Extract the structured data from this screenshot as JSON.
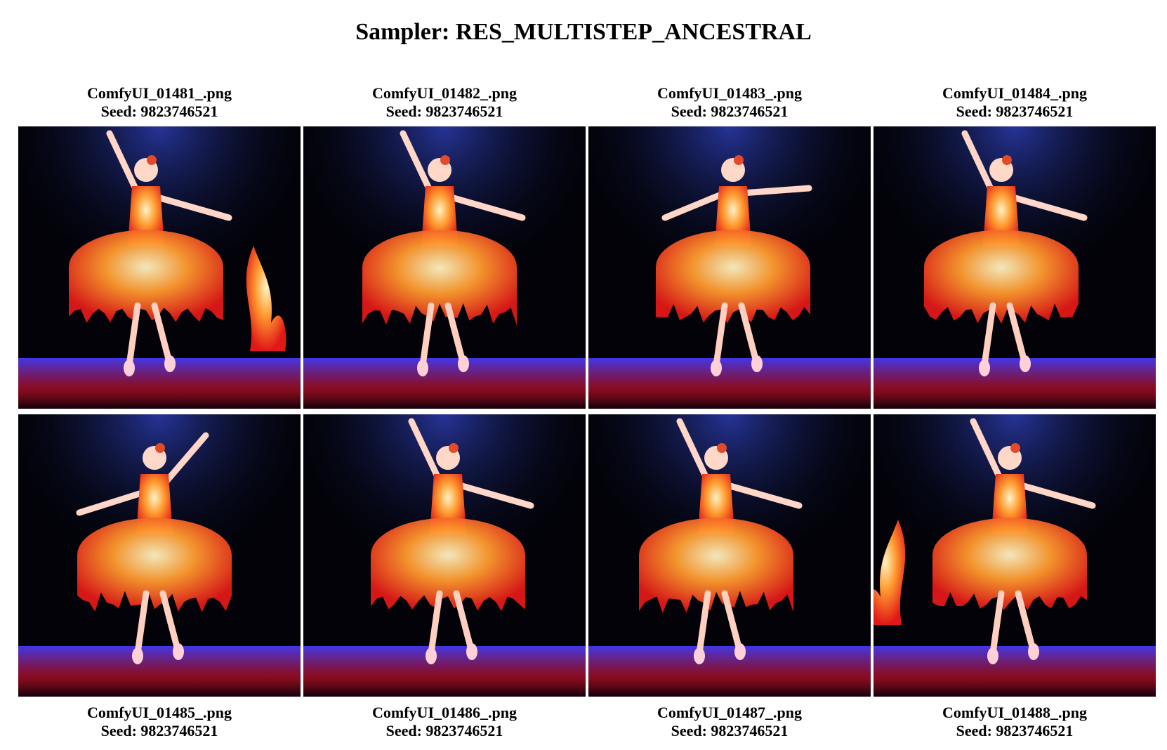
{
  "page": {
    "title": "Sampler: RES_MULTISTEP_ANCESTRAL"
  },
  "images": [
    {
      "filename": "ComfyUI_01481_.png",
      "seed": "Seed: 9823746521",
      "side_flame": "right",
      "pose": "left-up"
    },
    {
      "filename": "ComfyUI_01482_.png",
      "seed": "Seed: 9823746521",
      "side_flame": "none",
      "pose": "left-up"
    },
    {
      "filename": "ComfyUI_01483_.png",
      "seed": "Seed: 9823746521",
      "side_flame": "none",
      "pose": "wide"
    },
    {
      "filename": "ComfyUI_01484_.png",
      "seed": "Seed: 9823746521",
      "side_flame": "none",
      "pose": "left-up"
    },
    {
      "filename": "ComfyUI_01485_.png",
      "seed": "Seed: 9823746521",
      "side_flame": "none",
      "pose": "right-up"
    },
    {
      "filename": "ComfyUI_01486_.png",
      "seed": "Seed: 9823746521",
      "side_flame": "none",
      "pose": "left-up"
    },
    {
      "filename": "ComfyUI_01487_.png",
      "seed": "Seed: 9823746521",
      "side_flame": "none",
      "pose": "left-up"
    },
    {
      "filename": "ComfyUI_01488_.png",
      "seed": "Seed: 9823746521",
      "side_flame": "left",
      "pose": "left-up"
    }
  ],
  "colors": {
    "flame_core": "#fff3c4",
    "flame_mid": "#ff9a2e",
    "flame_outer": "#e01818",
    "spotlight": "#2a3aa8",
    "floor_glow": "#4a3cff"
  }
}
